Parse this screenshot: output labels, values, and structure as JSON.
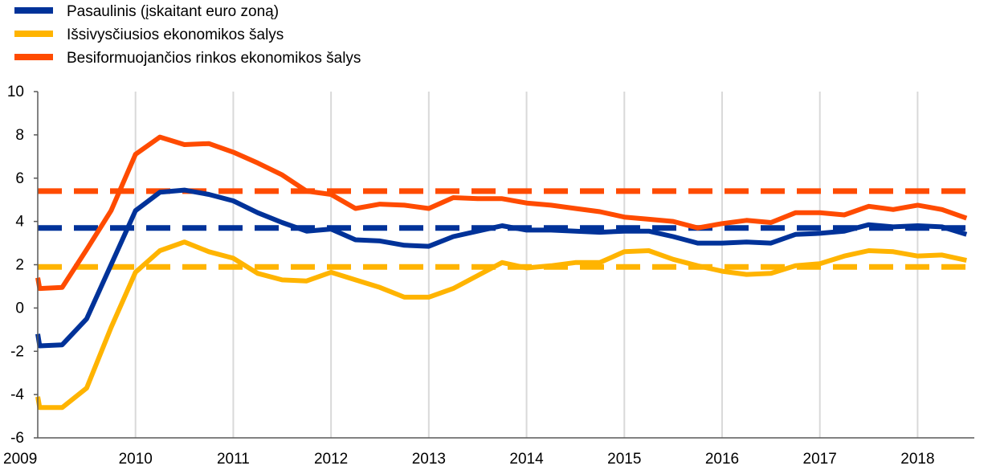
{
  "chart_data": {
    "type": "line",
    "title": "",
    "xlabel": "",
    "ylabel": "",
    "xlim": [
      2009.0,
      2018.58
    ],
    "ylim": [
      -6,
      10
    ],
    "y_ticks": [
      -6,
      -4,
      -2,
      0,
      2,
      4,
      6,
      8,
      10
    ],
    "y_tick_labels": [
      "-6",
      "-4",
      "-2",
      "0",
      "2",
      "4",
      "6",
      "8",
      "10"
    ],
    "x_ticks": [
      2009,
      2010,
      2011,
      2012,
      2013,
      2014,
      2015,
      2016,
      2017,
      2018
    ],
    "x_tick_labels": [
      "2009",
      "2010",
      "2011",
      "2012",
      "2013",
      "2014",
      "2015",
      "2016",
      "2017",
      "2018"
    ],
    "grid": "vertical",
    "legend_position": "top-left",
    "x": [
      2009.0,
      2009.02,
      2009.25,
      2009.5,
      2009.75,
      2010.0,
      2010.25,
      2010.5,
      2010.75,
      2011.0,
      2011.25,
      2011.5,
      2011.75,
      2012.0,
      2012.25,
      2012.5,
      2012.75,
      2013.0,
      2013.25,
      2013.5,
      2013.75,
      2014.0,
      2014.25,
      2014.5,
      2014.75,
      2015.0,
      2015.25,
      2015.5,
      2015.75,
      2016.0,
      2016.25,
      2016.5,
      2016.75,
      2017.0,
      2017.25,
      2017.5,
      2017.75,
      2018.0,
      2018.25,
      2018.5
    ],
    "series": [
      {
        "name": "Pasaulinis (įskaitant euro zoną)",
        "color": "#003299",
        "style": "solid",
        "values": [
          -1.2,
          -1.75,
          -1.7,
          -0.5,
          2.0,
          4.5,
          5.35,
          5.45,
          5.25,
          4.95,
          4.4,
          3.95,
          3.55,
          3.65,
          3.15,
          3.1,
          2.9,
          2.85,
          3.3,
          3.55,
          3.8,
          3.6,
          3.6,
          3.55,
          3.5,
          3.55,
          3.55,
          3.3,
          3.0,
          3.0,
          3.05,
          3.0,
          3.4,
          3.45,
          3.55,
          3.85,
          3.75,
          3.8,
          3.75,
          3.4
        ]
      },
      {
        "name": "Išsivysčiusios ekonomikos šalys",
        "color": "#FFB400",
        "style": "solid",
        "values": [
          -4.1,
          -4.6,
          -4.6,
          -3.7,
          -0.9,
          1.65,
          2.65,
          3.05,
          2.6,
          2.3,
          1.6,
          1.3,
          1.25,
          1.65,
          1.3,
          0.95,
          0.5,
          0.5,
          0.9,
          1.5,
          2.1,
          1.85,
          1.95,
          2.1,
          2.1,
          2.6,
          2.65,
          2.25,
          1.95,
          1.7,
          1.55,
          1.6,
          1.95,
          2.05,
          2.4,
          2.65,
          2.6,
          2.4,
          2.45,
          2.2
        ]
      },
      {
        "name": "Besiformuojančios rinkos ekonomikos šalys",
        "color": "#FF4B00",
        "style": "solid",
        "values": [
          1.4,
          0.9,
          0.95,
          2.7,
          4.5,
          7.1,
          7.9,
          7.55,
          7.6,
          7.2,
          6.7,
          6.15,
          5.4,
          5.25,
          4.6,
          4.8,
          4.75,
          4.6,
          5.1,
          5.05,
          5.05,
          4.85,
          4.75,
          4.6,
          4.45,
          4.2,
          4.1,
          4.0,
          3.7,
          3.9,
          4.05,
          3.95,
          4.4,
          4.4,
          4.3,
          4.7,
          4.55,
          4.75,
          4.55,
          4.15
        ]
      }
    ],
    "reference_lines": [
      {
        "series": "Pasaulinis (įskaitant euro zoną)",
        "value": 3.7,
        "color": "#003299",
        "style": "dashed"
      },
      {
        "series": "Išsivysčiusios ekonomikos šalys",
        "value": 1.9,
        "color": "#FFB400",
        "style": "dashed"
      },
      {
        "series": "Besiformuojančios rinkos ekonomikos šalys",
        "value": 5.4,
        "color": "#FF4B00",
        "style": "dashed"
      }
    ]
  }
}
